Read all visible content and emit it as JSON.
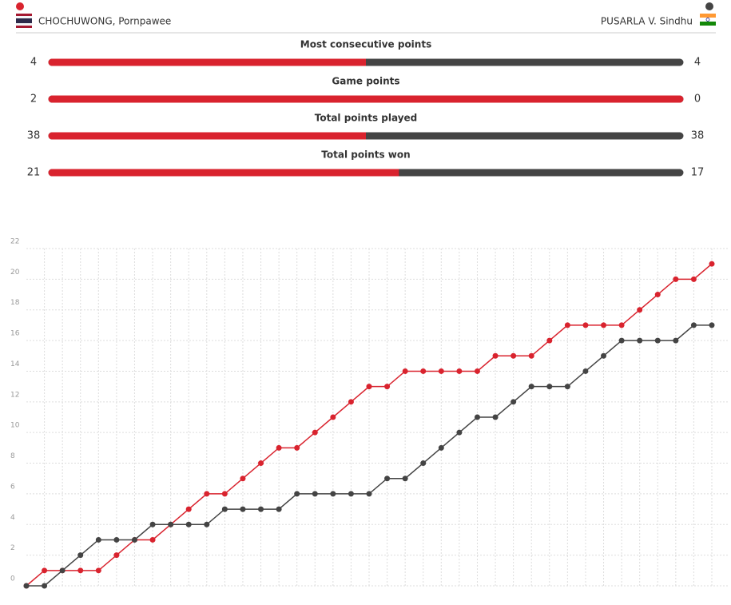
{
  "players": {
    "left": "CHOCHUWONG, Pornpawee",
    "right": "PUSARLA V. Sindhu"
  },
  "stats": [
    {
      "label": "Most consecutive points",
      "left": 4,
      "right": 4
    },
    {
      "label": "Game points",
      "left": 2,
      "right": 0
    },
    {
      "label": "Total points played",
      "left": 38,
      "right": 38
    },
    {
      "label": "Total points won",
      "left": 21,
      "right": 17
    }
  ],
  "chart_data": {
    "type": "line",
    "series": [
      {
        "color": "#d9232e",
        "values": [
          0,
          1,
          1,
          1,
          1,
          2,
          3,
          3,
          4,
          5,
          6,
          6,
          7,
          8,
          9,
          9,
          10,
          11,
          12,
          13,
          13,
          14,
          14,
          14,
          14,
          14,
          15,
          15,
          15,
          16,
          17,
          17,
          17,
          17,
          18,
          19,
          20,
          20,
          21
        ]
      },
      {
        "color": "#444444",
        "values": [
          0,
          0,
          1,
          2,
          3,
          3,
          3,
          4,
          4,
          4,
          4,
          5,
          5,
          5,
          5,
          6,
          6,
          6,
          6,
          6,
          7,
          7,
          8,
          9,
          10,
          11,
          11,
          12,
          13,
          13,
          13,
          14,
          15,
          16,
          16,
          16,
          16,
          17,
          17
        ]
      }
    ],
    "ylim": [
      0,
      22
    ],
    "yticks": [
      0,
      2,
      4,
      6,
      8,
      10,
      12,
      14,
      16,
      18,
      20,
      22
    ],
    "grid": true
  }
}
